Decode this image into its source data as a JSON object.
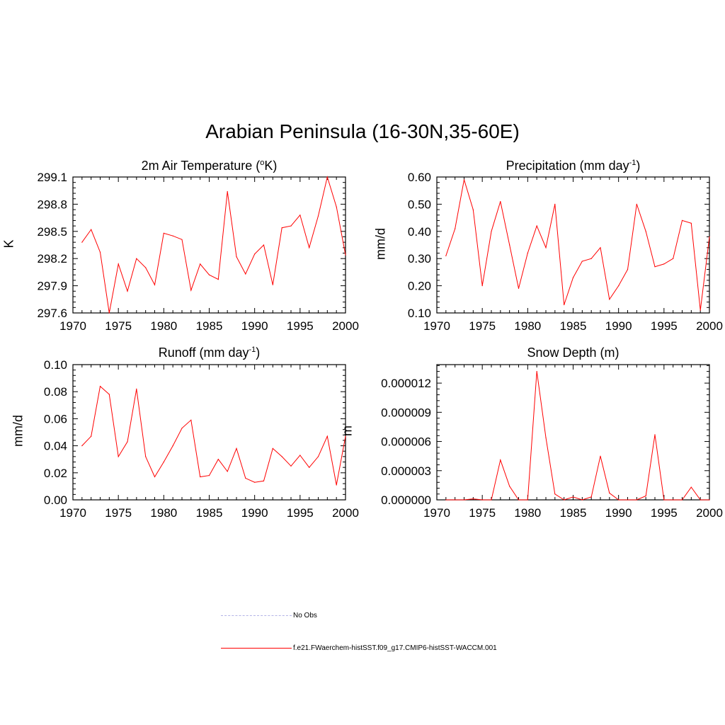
{
  "title": "Arabian Peninsula (16-30N,35-60E)",
  "panels": [
    {
      "title_text": "2m Air Temperature (",
      "title_sup": "o",
      "title_tail": "K)",
      "ylabel": "K",
      "tick_labels": [
        "297.6",
        "297.9",
        "298.2",
        "298.5",
        "298.8",
        "299.1"
      ]
    },
    {
      "title_text": "Precipitation (mm day",
      "title_sup": "-1",
      "title_tail": ")",
      "ylabel": "mm/d",
      "tick_labels": [
        "0.10",
        "0.20",
        "0.30",
        "0.40",
        "0.50",
        "0.60"
      ]
    },
    {
      "title_text": "Runoff (mm day",
      "title_sup": "-1",
      "title_tail": ")",
      "ylabel": "mm/d",
      "tick_labels": [
        "0.00",
        "0.02",
        "0.04",
        "0.06",
        "0.08",
        "0.10"
      ]
    },
    {
      "title_text": "Snow Depth (m)",
      "title_sup": "",
      "title_tail": "",
      "ylabel": "m",
      "tick_labels": [
        "0.000000",
        "0.000003",
        "0.000006",
        "0.000009",
        "0.000012"
      ]
    }
  ],
  "x_tick_labels": [
    "1970",
    "1975",
    "1980",
    "1985",
    "1990",
    "1995",
    "2000"
  ],
  "legend": [
    {
      "label": "No Obs",
      "color": "#b3b3e6",
      "style": "dashed"
    },
    {
      "label": "f.e21.FWaerchem-histSST.f09_g17.CMIP6-histSST-WACCM.001",
      "color": "#ff0000",
      "style": "solid"
    }
  ],
  "chart_data": [
    {
      "type": "line",
      "title": "2m Air Temperature (oK)",
      "xlabel": "",
      "ylabel": "K",
      "xlim": [
        1970,
        2000
      ],
      "ylim": [
        297.6,
        299.1
      ],
      "y_ticks": [
        297.6,
        297.9,
        298.2,
        298.5,
        298.8,
        299.1
      ],
      "color": "#ff0000",
      "series": [
        {
          "x": [
            1971,
            1972,
            1973,
            1974,
            1975,
            1976,
            1977,
            1978,
            1979,
            1980,
            1981,
            1982,
            1983,
            1984,
            1985,
            1986,
            1987,
            1988,
            1989,
            1990,
            1991,
            1992,
            1993,
            1994,
            1995,
            1996,
            1997,
            1998,
            1999,
            2000
          ],
          "values": [
            298.38,
            298.52,
            298.27,
            297.6,
            298.14,
            297.84,
            298.2,
            298.1,
            297.91,
            298.48,
            298.45,
            298.41,
            297.85,
            298.14,
            298.02,
            297.97,
            298.94,
            298.22,
            298.03,
            298.25,
            298.35,
            297.91,
            298.54,
            298.56,
            298.68,
            298.32,
            298.67,
            299.1,
            298.77,
            298.24
          ]
        }
      ]
    },
    {
      "type": "line",
      "title": "Precipitation (mm day-1)",
      "xlabel": "",
      "ylabel": "mm/d",
      "xlim": [
        1970,
        2000
      ],
      "ylim": [
        0.1,
        0.6
      ],
      "y_ticks": [
        0.1,
        0.2,
        0.3,
        0.4,
        0.5,
        0.6
      ],
      "color": "#ff0000",
      "series": [
        {
          "x": [
            1971,
            1972,
            1973,
            1974,
            1975,
            1976,
            1977,
            1978,
            1979,
            1980,
            1981,
            1982,
            1983,
            1984,
            1985,
            1986,
            1987,
            1988,
            1989,
            1990,
            1991,
            1992,
            1993,
            1994,
            1995,
            1996,
            1997,
            1998,
            1999,
            2000
          ],
          "values": [
            0.31,
            0.41,
            0.59,
            0.48,
            0.2,
            0.4,
            0.51,
            0.35,
            0.19,
            0.32,
            0.42,
            0.34,
            0.5,
            0.13,
            0.23,
            0.29,
            0.3,
            0.34,
            0.15,
            0.2,
            0.26,
            0.5,
            0.4,
            0.27,
            0.28,
            0.3,
            0.44,
            0.43,
            0.11,
            0.38
          ]
        }
      ]
    },
    {
      "type": "line",
      "title": "Runoff (mm day-1)",
      "xlabel": "",
      "ylabel": "mm/d",
      "xlim": [
        1970,
        2000
      ],
      "ylim": [
        0.0,
        0.1
      ],
      "y_ticks": [
        0.0,
        0.02,
        0.04,
        0.06,
        0.08,
        0.1
      ],
      "color": "#ff0000",
      "series": [
        {
          "x": [
            1971,
            1972,
            1973,
            1974,
            1975,
            1976,
            1977,
            1978,
            1979,
            1980,
            1981,
            1982,
            1983,
            1984,
            1985,
            1986,
            1987,
            1988,
            1989,
            1990,
            1991,
            1992,
            1993,
            1994,
            1995,
            1996,
            1997,
            1998,
            1999,
            2000
          ],
          "values": [
            0.04,
            0.047,
            0.084,
            0.078,
            0.032,
            0.043,
            0.082,
            0.032,
            0.017,
            0.028,
            0.04,
            0.053,
            0.059,
            0.017,
            0.018,
            0.03,
            0.021,
            0.038,
            0.016,
            0.013,
            0.014,
            0.038,
            0.032,
            0.025,
            0.033,
            0.024,
            0.032,
            0.047,
            0.011,
            0.047
          ]
        }
      ]
    },
    {
      "type": "line",
      "title": "Snow Depth (m)",
      "xlabel": "",
      "ylabel": "m",
      "xlim": [
        1970,
        2000
      ],
      "ylim": [
        0.0,
        1.39e-05
      ],
      "y_ticks": [
        0.0,
        3e-06,
        6e-06,
        9e-06,
        1.2e-05
      ],
      "color": "#ff0000",
      "series": [
        {
          "x": [
            1971,
            1972,
            1973,
            1974,
            1975,
            1976,
            1977,
            1978,
            1979,
            1980,
            1981,
            1982,
            1983,
            1984,
            1985,
            1986,
            1987,
            1988,
            1989,
            1990,
            1991,
            1992,
            1993,
            1994,
            1995,
            1996,
            1997,
            1998,
            1999,
            2000
          ],
          "values": [
            0.0,
            0.0,
            0.0,
            1e-07,
            0.0,
            0.0,
            4.1e-06,
            1.4e-06,
            0.0,
            0.0,
            1.32e-05,
            6.4e-06,
            6e-07,
            0.0,
            3e-07,
            0.0,
            3e-07,
            4.5e-06,
            7e-07,
            0.0,
            0.0,
            0.0,
            4e-07,
            6.7e-06,
            0.0,
            0.0,
            0.0,
            1.3e-06,
            0.0,
            0.0
          ]
        }
      ]
    }
  ]
}
